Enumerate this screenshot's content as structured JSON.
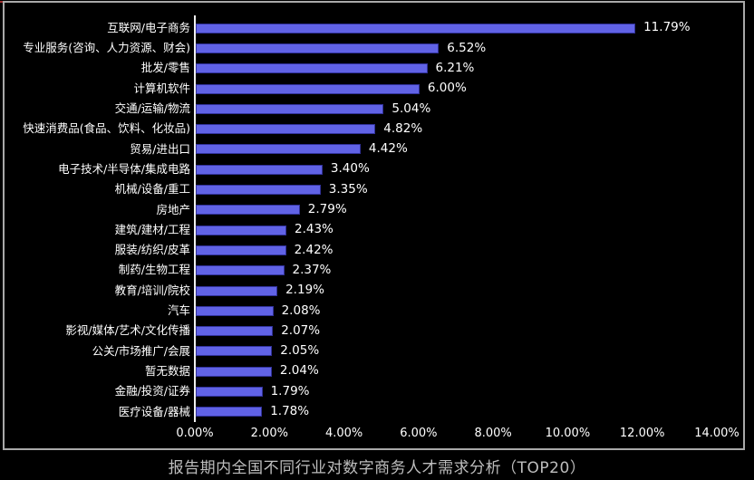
{
  "chart_data": {
    "type": "bar",
    "orientation": "horizontal",
    "title": "报告期内全国不同行业对数字商务人才需求分析（TOP20）",
    "categories": [
      "互联网/电子商务",
      "专业服务(咨询、人力资源、财会)",
      "批发/零售",
      "计算机软件",
      "交通/运输/物流",
      "快速消费品(食品、饮料、化妆品)",
      "贸易/进出口",
      "电子技术/半导体/集成电路",
      "机械/设备/重工",
      "房地产",
      "建筑/建材/工程",
      "服装/纺织/皮革",
      "制药/生物工程",
      "教育/培训/院校",
      "汽车",
      "影视/媒体/艺术/文化传播",
      "公关/市场推广/会展",
      "暂无数据",
      "金融/投资/证券",
      "医疗设备/器械"
    ],
    "values": [
      11.79,
      6.52,
      6.21,
      6.0,
      5.04,
      4.82,
      4.42,
      3.4,
      3.35,
      2.79,
      2.43,
      2.42,
      2.37,
      2.19,
      2.08,
      2.07,
      2.05,
      2.04,
      1.79,
      1.78
    ],
    "value_labels": [
      "11.79%",
      "6.52%",
      "6.21%",
      "6.00%",
      "5.04%",
      "4.82%",
      "4.42%",
      "3.40%",
      "3.35%",
      "2.79%",
      "2.43%",
      "2.42%",
      "2.37%",
      "2.19%",
      "2.08%",
      "2.07%",
      "2.05%",
      "2.04%",
      "1.79%",
      "1.78%"
    ],
    "x_ticks": [
      "0.00%",
      "2.00%",
      "4.00%",
      "6.00%",
      "8.00%",
      "10.00%",
      "12.00%",
      "14.00%"
    ],
    "xlim": [
      0,
      14
    ],
    "grid": false,
    "legend": "none",
    "colors": {
      "background": "#000000",
      "bar_fill": "#6163e6",
      "bar_edge": "#32329b",
      "axis_line": "#f0f0f0",
      "frame_border": "#a9a9a9",
      "label_text": "#ffffff",
      "title_text": "#bdbdbd",
      "corner_accent": "#a03030"
    }
  }
}
